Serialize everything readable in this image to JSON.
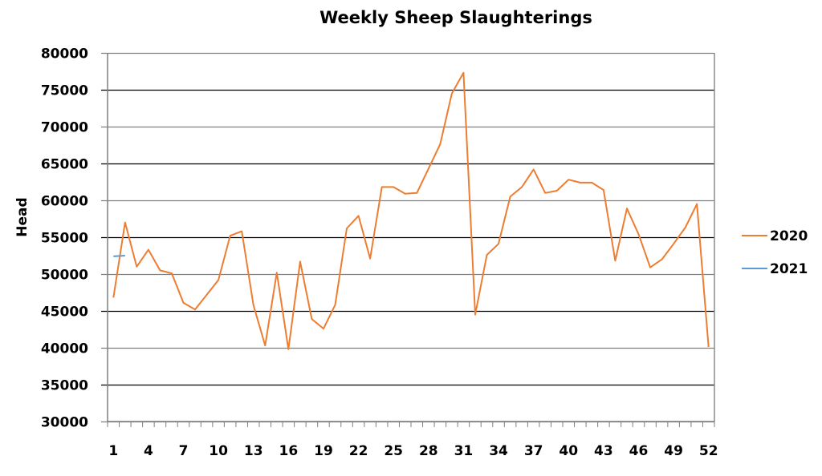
{
  "chart_data": {
    "type": "line",
    "title": "Weekly Sheep Slaughterings",
    "xlabel": "",
    "ylabel": "Head",
    "ylim": [
      30000,
      80000
    ],
    "yticks": [
      30000,
      35000,
      40000,
      45000,
      50000,
      55000,
      60000,
      65000,
      70000,
      75000,
      80000
    ],
    "xtick_labels": [
      "1",
      "4",
      "7",
      "10",
      "13",
      "16",
      "19",
      "22",
      "25",
      "28",
      "31",
      "34",
      "37",
      "40",
      "43",
      "46",
      "49",
      "52"
    ],
    "grid": true,
    "legend_position": "right",
    "x": [
      1,
      2,
      3,
      4,
      5,
      6,
      7,
      8,
      9,
      10,
      11,
      12,
      13,
      14,
      15,
      16,
      17,
      18,
      19,
      20,
      21,
      22,
      23,
      24,
      25,
      26,
      27,
      28,
      29,
      30,
      31,
      32,
      33,
      34,
      35,
      36,
      37,
      38,
      39,
      40,
      41,
      42,
      43,
      44,
      45,
      46,
      47,
      48,
      49,
      50,
      51,
      52
    ],
    "series": [
      {
        "name": "2020",
        "color": "#ED7D31",
        "values": [
          46800,
          57000,
          51000,
          53300,
          50500,
          50100,
          46100,
          45200,
          47200,
          49200,
          55200,
          55800,
          45800,
          40300,
          50200,
          39800,
          51700,
          43900,
          42600,
          45800,
          56200,
          57900,
          52100,
          61800,
          61800,
          60900,
          61000,
          64300,
          67600,
          74500,
          77300,
          44500,
          52600,
          54100,
          60500,
          61800,
          64200,
          61000,
          61300,
          62800,
          62400,
          62400,
          61400,
          51800,
          58900,
          55400,
          50900,
          52000,
          54100,
          56300,
          59500,
          40100
        ]
      },
      {
        "name": "2021",
        "color": "#5B9BD5",
        "values": [
          52400,
          52500
        ]
      }
    ]
  }
}
